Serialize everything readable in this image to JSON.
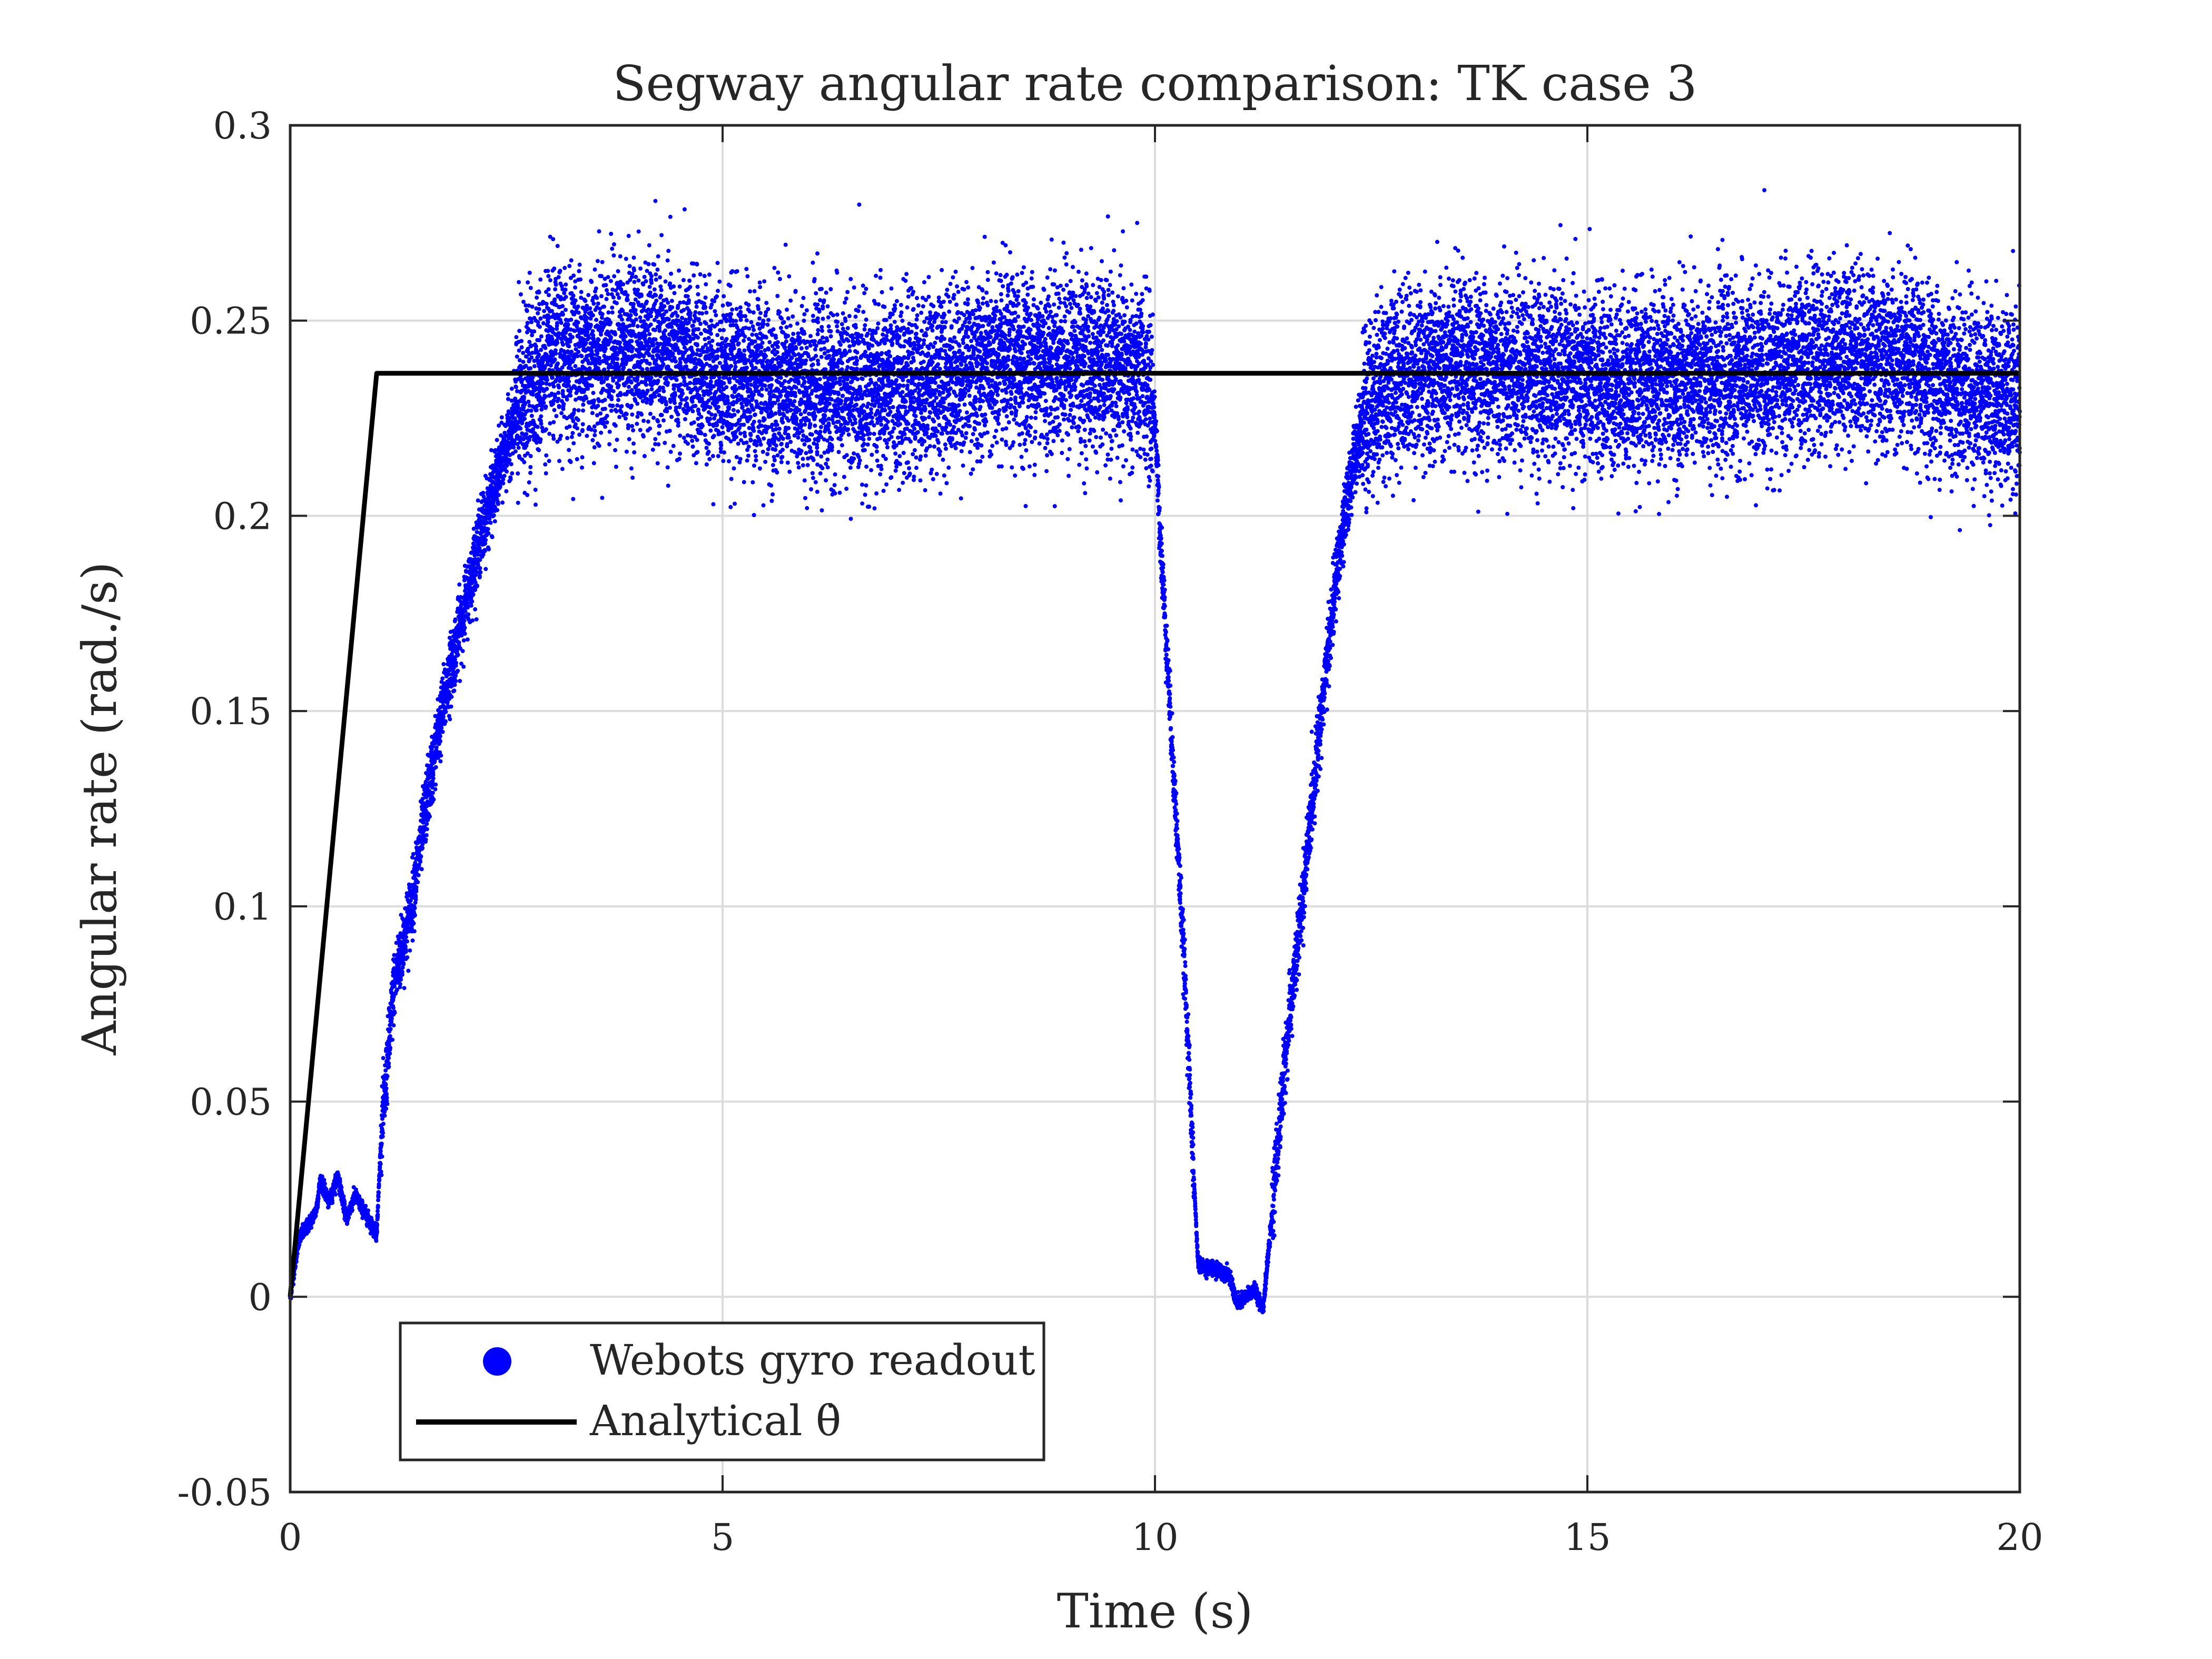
{
  "chart_data": {
    "type": "scatter",
    "title": "Segway angular rate comparison: TK case 3",
    "xlabel": "Time (s)",
    "ylabel": "Angular rate (rad./s)",
    "xlim": [
      0,
      20
    ],
    "ylim": [
      -0.05,
      0.3
    ],
    "xticks": [
      "0",
      "5",
      "10",
      "15",
      "20"
    ],
    "yticks": [
      "-0.05",
      "0",
      "0.05",
      "0.1",
      "0.15",
      "0.2",
      "0.25",
      "0.3"
    ],
    "grid": true,
    "legend_position": "bottom-left",
    "series": [
      {
        "name": "Webots gyro readout",
        "kind": "scatter",
        "color": "#0000ff",
        "noise_std": 0.011,
        "points": [
          [
            0,
            0
          ],
          [
            0.1,
            0.015
          ],
          [
            0.2,
            0.018
          ],
          [
            0.3,
            0.022
          ],
          [
            0.35,
            0.03
          ],
          [
            0.45,
            0.024
          ],
          [
            0.55,
            0.031
          ],
          [
            0.65,
            0.02
          ],
          [
            0.75,
            0.026
          ],
          [
            0.85,
            0.022
          ],
          [
            0.95,
            0.018
          ],
          [
            1.0,
            0.016
          ],
          [
            1.05,
            0.04
          ],
          [
            1.2,
            0.08
          ],
          [
            1.4,
            0.1
          ],
          [
            1.6,
            0.13
          ],
          [
            1.8,
            0.155
          ],
          [
            2.0,
            0.175
          ],
          [
            2.2,
            0.195
          ],
          [
            2.4,
            0.21
          ],
          [
            2.6,
            0.225
          ],
          [
            2.8,
            0.235
          ],
          [
            3.0,
            0.24
          ],
          [
            4.0,
            0.243
          ],
          [
            5.0,
            0.236
          ],
          [
            6.0,
            0.232
          ],
          [
            7.0,
            0.233
          ],
          [
            8.0,
            0.238
          ],
          [
            9.0,
            0.24
          ],
          [
            9.9,
            0.235
          ],
          [
            10.0,
            0.225
          ],
          [
            10.05,
            0.2
          ],
          [
            10.2,
            0.14
          ],
          [
            10.35,
            0.08
          ],
          [
            10.45,
            0.03
          ],
          [
            10.5,
            0.008
          ],
          [
            10.7,
            0.007
          ],
          [
            10.85,
            0.006
          ],
          [
            10.95,
            -0.002
          ],
          [
            11.05,
            0.0
          ],
          [
            11.15,
            0.002
          ],
          [
            11.25,
            -0.003
          ],
          [
            11.35,
            0.02
          ],
          [
            11.5,
            0.06
          ],
          [
            11.7,
            0.1
          ],
          [
            11.9,
            0.145
          ],
          [
            12.1,
            0.185
          ],
          [
            12.3,
            0.215
          ],
          [
            12.5,
            0.23
          ],
          [
            12.8,
            0.236
          ],
          [
            14.0,
            0.238
          ],
          [
            15.0,
            0.234
          ],
          [
            16.0,
            0.235
          ],
          [
            17.0,
            0.236
          ],
          [
            18.0,
            0.242
          ],
          [
            19.0,
            0.236
          ],
          [
            20.0,
            0.228
          ]
        ]
      },
      {
        "name": "Analytical θ̇",
        "kind": "line",
        "color": "#000000",
        "points": [
          [
            0,
            0
          ],
          [
            1,
            0.2365
          ],
          [
            20,
            0.2365
          ]
        ]
      }
    ]
  },
  "legend": {
    "scatter_label": "Webots gyro readout",
    "line_label": "Analytical θ̇"
  }
}
